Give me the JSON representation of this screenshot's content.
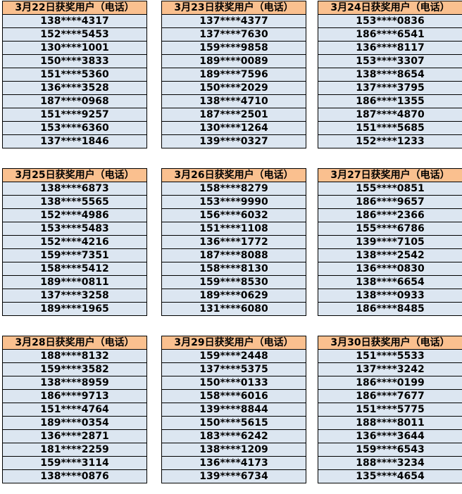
{
  "tables": [
    {
      "title": "3月22日获奖用户（电话）",
      "rows": [
        "138****4317",
        "152****5453",
        "130****1001",
        "150****3833",
        "151****5360",
        "136****3528",
        "187****0968",
        "151****9257",
        "153****6360",
        "137****1846"
      ]
    },
    {
      "title": "3月23日获奖用户（电话）",
      "rows": [
        "137****4377",
        "137****7630",
        "159****9858",
        "189****0089",
        "189****7596",
        "150****2029",
        "138****4710",
        "187****2501",
        "130****1264",
        "139****0327"
      ]
    },
    {
      "title": "3月24日获奖用户（电话）",
      "rows": [
        "153****0836",
        "186****6541",
        "136****8117",
        "153****3307",
        "138****8654",
        "137****3795",
        "186****1355",
        "187****4870",
        "151****5685",
        "152****1233"
      ]
    },
    {
      "title": "3月25日获奖用户（电话）",
      "rows": [
        "138****6873",
        "138****5565",
        "152****4986",
        "153****5483",
        "152****4216",
        "159****7351",
        "158****5412",
        "189****0811",
        "137****3258",
        "189****1965"
      ]
    },
    {
      "title": "3月26日获奖用户（电话）",
      "rows": [
        "158****8279",
        "153****9990",
        "156****6032",
        "151****1108",
        "136****1772",
        "187****8088",
        "158****8130",
        "159****8530",
        "189****0629",
        "131****6080"
      ]
    },
    {
      "title": "3月27日获奖用户（电话）",
      "rows": [
        "155****0851",
        "186****9657",
        "186****2366",
        "155****6786",
        "139****7105",
        "138****2542",
        "136****0830",
        "138****6654",
        "138****0933",
        "186****8485"
      ]
    },
    {
      "title": "3月28日获奖用户（电话）",
      "rows": [
        "188****8132",
        "159****3582",
        "138****8959",
        "186****9713",
        "151****4764",
        "189****0354",
        "136****2871",
        "181****2259",
        "159****3114",
        "138****0876"
      ]
    },
    {
      "title": "3月29日获奖用户（电话）",
      "rows": [
        "159****2448",
        "137****5375",
        "150****0133",
        "158****6016",
        "139****8844",
        "150****5615",
        "183****6242",
        "138****1209",
        "136****4173",
        "139****6734"
      ]
    },
    {
      "title": "3月30日获奖用户（电话）",
      "rows": [
        "151****5533",
        "137****3242",
        "186****0199",
        "186****7677",
        "151****5775",
        "188****8011",
        "136****3644",
        "159****6543",
        "188****3234",
        "135****4654"
      ]
    }
  ]
}
